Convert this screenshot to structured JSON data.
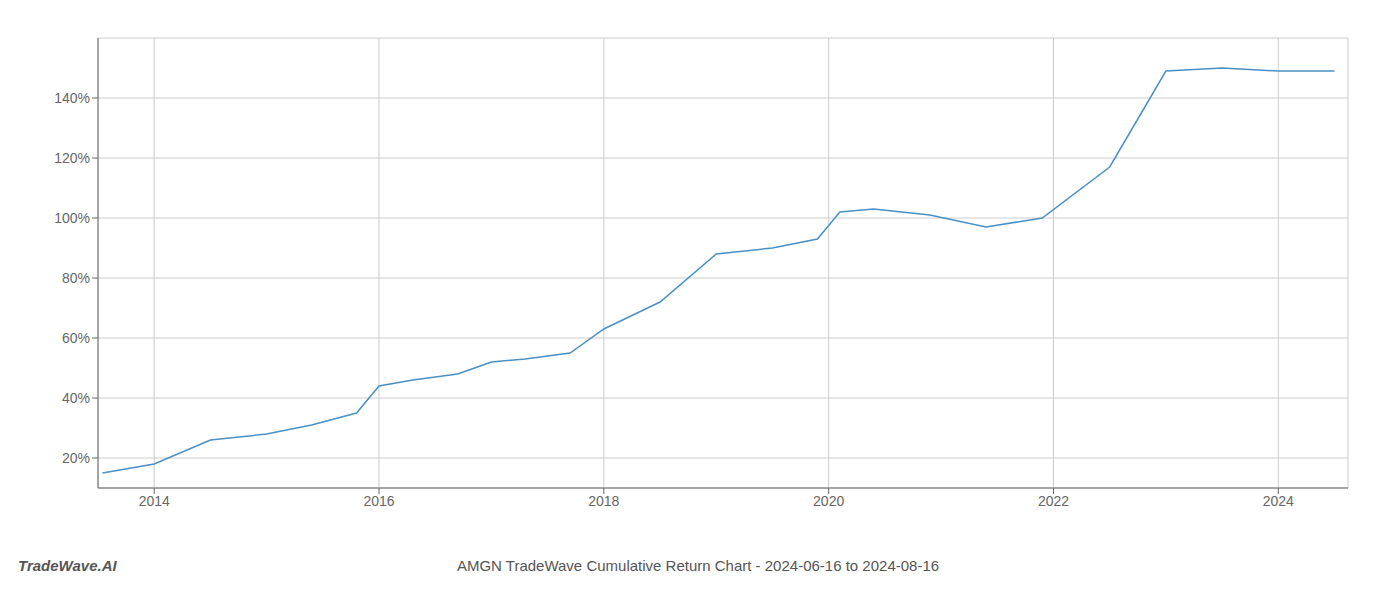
{
  "chart_data": {
    "type": "line",
    "title": "AMGN TradeWave Cumulative Return Chart - 2024-06-16 to 2024-08-16",
    "annotations": [
      "TradeWave.AI"
    ],
    "x": [
      2013.54,
      2014.0,
      2014.5,
      2015.0,
      2015.4,
      2015.8,
      2016.0,
      2016.3,
      2016.7,
      2017.0,
      2017.3,
      2017.7,
      2018.0,
      2018.5,
      2019.0,
      2019.5,
      2019.9,
      2020.1,
      2020.4,
      2020.9,
      2021.4,
      2021.9,
      2022.5,
      2023.0,
      2023.5,
      2024.0,
      2024.5
    ],
    "values": [
      15,
      18,
      26,
      28,
      31,
      35,
      44,
      46,
      48,
      52,
      53,
      55,
      63,
      72,
      88,
      90,
      93,
      102,
      103,
      101,
      97,
      100,
      117,
      149,
      150,
      149,
      149
    ],
    "color": "#4a90c4",
    "xlim": [
      2013.5,
      2024.62
    ],
    "ylim": [
      10,
      160
    ],
    "xticks": [
      2014,
      2016,
      2018,
      2020,
      2022,
      2024
    ],
    "yticks": [
      {
        "value": 20,
        "label": "20%"
      },
      {
        "value": 40,
        "label": "40%"
      },
      {
        "value": 60,
        "label": "60%"
      },
      {
        "value": 80,
        "label": "80%"
      },
      {
        "value": 100,
        "label": "100%"
      },
      {
        "value": 120,
        "label": "120%"
      },
      {
        "value": 140,
        "label": "140%"
      }
    ],
    "grid": true
  }
}
